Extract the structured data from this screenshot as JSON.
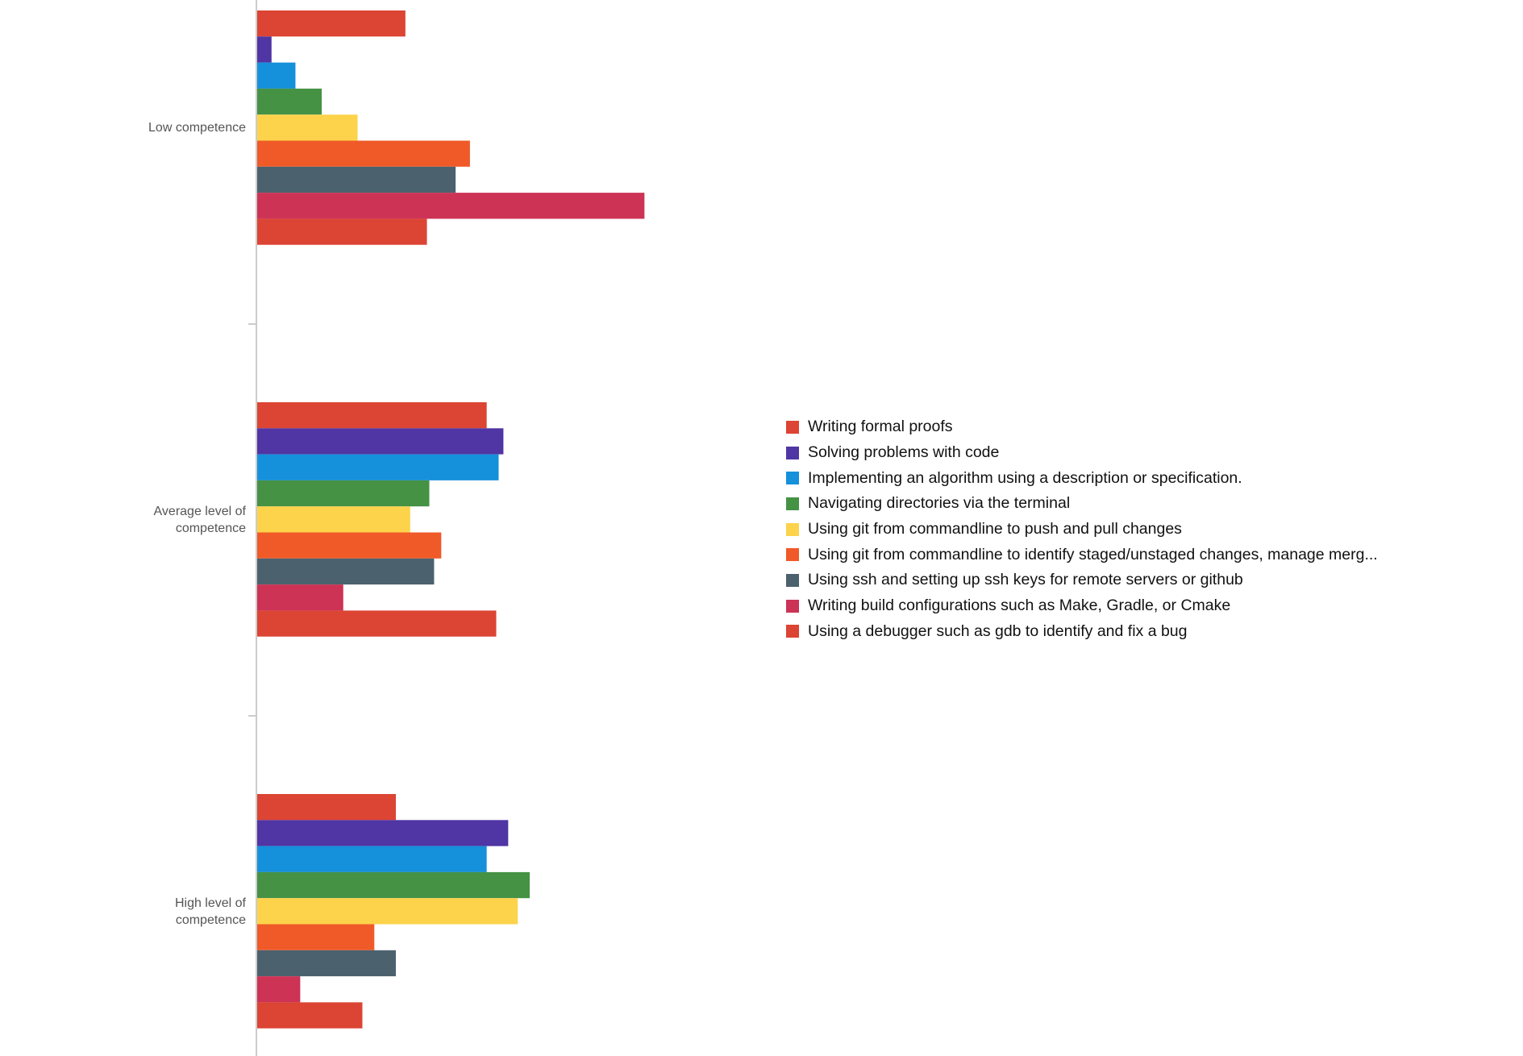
{
  "chart_data": {
    "type": "bar",
    "orientation": "horizontal",
    "title": "",
    "xlabel": "",
    "ylabel": "",
    "x_axis_visible": false,
    "grid": false,
    "legend_position": "right",
    "xlim": [
      0,
      200
    ],
    "categories": [
      "Low competence",
      "Average level of competence",
      "High level of competence"
    ],
    "series": [
      {
        "name": "Writing formal proofs",
        "color": "#DC4433",
        "values": [
          62,
          96,
          58
        ]
      },
      {
        "name": "Solving problems with code",
        "color": "#5035A4",
        "values": [
          6,
          103,
          105
        ]
      },
      {
        "name": "Implementing an algorithm using a description or specification.",
        "color": "#1590DB",
        "values": [
          16,
          101,
          96
        ]
      },
      {
        "name": "Navigating directories via the terminal",
        "color": "#459245",
        "values": [
          27,
          72,
          114
        ]
      },
      {
        "name": "Using git from commandline to push and pull changes",
        "color": "#FDD34B",
        "values": [
          42,
          64,
          109
        ]
      },
      {
        "name": "Using git from commandline to identify staged/unstaged changes, manage merg...",
        "color": "#F05A28",
        "values": [
          89,
          77,
          49
        ]
      },
      {
        "name": "Using ssh and setting up ssh keys for remote servers or github",
        "color": "#4B616E",
        "values": [
          83,
          74,
          58
        ]
      },
      {
        "name": "Writing build configurations such as Make, Gradle, or Cmake",
        "color": "#CC3355",
        "values": [
          162,
          36,
          18
        ]
      },
      {
        "name": "Using a debugger such as gdb to identify and fix a bug",
        "color": "#DC4433",
        "values": [
          71,
          100,
          44
        ]
      }
    ]
  }
}
